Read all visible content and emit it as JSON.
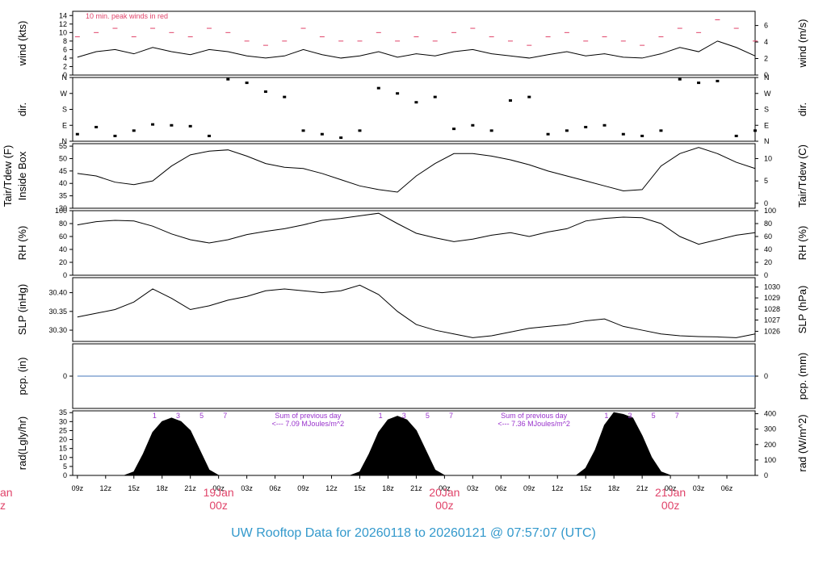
{
  "page": {
    "title": "UW Rooftop Data for 20260118  to  20260121 @ 07:57:07  (UTC)",
    "title_color": "#3399cc",
    "date_color": "#e0446a",
    "annotation_color": "#9933cc",
    "peak_color": "#e0446a"
  },
  "chart_data": [
    {
      "id": "wind",
      "type": "line",
      "ylabel_left": "wind (kts)",
      "ylabel_right": "wind (m/s)",
      "ylim": [
        0,
        15
      ],
      "yticks_left": [
        "0",
        "2",
        "4",
        "6",
        "8",
        "10",
        "12",
        "14"
      ],
      "yticks_left_values": [
        0,
        2,
        4,
        6,
        8,
        10,
        12,
        14
      ],
      "yticks_right": [
        "0",
        "2",
        "4",
        "6"
      ],
      "yticks_right_values": [
        0,
        3.89,
        7.78,
        11.66
      ],
      "note": "10 min. peak winds in red",
      "series": [
        {
          "name": "wind",
          "x_hours": [
            0,
            2,
            4,
            6,
            8,
            10,
            12,
            14,
            16,
            18,
            20,
            22,
            24,
            26,
            28,
            30,
            32,
            34,
            36,
            38,
            40,
            42,
            44,
            46,
            48,
            50,
            52,
            54,
            56,
            58,
            60,
            62,
            64,
            66,
            68,
            70,
            72
          ],
          "values": [
            4.2,
            5.5,
            6.0,
            5.0,
            6.5,
            5.5,
            4.8,
            6.0,
            5.5,
            4.5,
            4.0,
            4.5,
            6.0,
            4.8,
            4.0,
            4.5,
            5.5,
            4.2,
            5.0,
            4.5,
            5.5,
            6.0,
            5.0,
            4.5,
            4.0,
            4.8,
            5.5,
            4.5,
            5.0,
            4.2,
            4.0,
            5.0,
            6.5,
            5.5,
            8.0,
            6.5,
            4.5
          ]
        },
        {
          "name": "peak",
          "x_hours": [
            0,
            2,
            4,
            6,
            8,
            10,
            12,
            14,
            16,
            18,
            20,
            22,
            24,
            26,
            28,
            30,
            32,
            34,
            36,
            38,
            40,
            42,
            44,
            46,
            48,
            50,
            52,
            54,
            56,
            58,
            60,
            62,
            64,
            66,
            68,
            70,
            72
          ],
          "values": [
            9,
            10,
            11,
            9,
            11,
            10,
            9,
            11,
            10,
            8,
            7,
            8,
            11,
            9,
            8,
            8,
            10,
            8,
            9,
            8,
            10,
            11,
            9,
            8,
            7,
            9,
            10,
            8,
            9,
            8,
            7,
            9,
            11,
            10,
            13,
            11,
            8
          ]
        }
      ]
    },
    {
      "id": "dir",
      "type": "scatter",
      "ylabel_left": "dir.",
      "ylabel_right": "dir.",
      "ylim": [
        0,
        360
      ],
      "yticks_left": [
        "N",
        "E",
        "S",
        "W",
        "N"
      ],
      "yticks_left_values": [
        0,
        90,
        180,
        270,
        360
      ],
      "yticks_right": [
        "N",
        "E",
        "S",
        "W",
        "N"
      ],
      "yticks_right_values": [
        0,
        90,
        180,
        270,
        360
      ],
      "series": [
        {
          "name": "direction",
          "x_hours": [
            0,
            2,
            4,
            6,
            8,
            10,
            12,
            14,
            16,
            18,
            20,
            22,
            24,
            26,
            28,
            30,
            32,
            34,
            36,
            38,
            40,
            42,
            44,
            46,
            48,
            50,
            52,
            54,
            56,
            58,
            60,
            62,
            64,
            66,
            68,
            70,
            72
          ],
          "values": [
            40,
            80,
            30,
            60,
            95,
            90,
            85,
            30,
            350,
            330,
            280,
            250,
            60,
            40,
            20,
            60,
            300,
            270,
            220,
            250,
            70,
            90,
            60,
            230,
            250,
            40,
            60,
            80,
            90,
            40,
            30,
            60,
            350,
            330,
            340,
            30,
            60
          ]
        }
      ]
    },
    {
      "id": "temp",
      "type": "line",
      "ylabel_left": "Tair/Tdew (F)",
      "ylabel_left2": "Inside Box",
      "ylabel_right": "Tair/Tdew (C)",
      "ylim": [
        30,
        56
      ],
      "yticks_left": [
        "30",
        "35",
        "40",
        "45",
        "50",
        "55"
      ],
      "yticks_left_values": [
        30,
        35,
        40,
        45,
        50,
        55
      ],
      "yticks_right": [
        "0",
        "5",
        "10"
      ],
      "yticks_right_values": [
        32,
        41,
        50
      ],
      "series": [
        {
          "name": "Tair",
          "x_hours": [
            0,
            2,
            4,
            6,
            8,
            10,
            12,
            14,
            16,
            18,
            20,
            22,
            24,
            26,
            28,
            30,
            32,
            34,
            36,
            38,
            40,
            42,
            44,
            46,
            48,
            50,
            52,
            54,
            56,
            58,
            60,
            62,
            64,
            66,
            68,
            70,
            72
          ],
          "values": [
            44,
            43,
            40.5,
            39.5,
            41,
            47,
            51.5,
            53,
            53.5,
            51,
            48,
            46.5,
            46,
            44,
            41.5,
            39,
            37.5,
            36.5,
            43,
            48,
            52,
            52,
            51,
            49.5,
            47.5,
            45,
            43,
            41,
            39,
            37,
            37.5,
            47,
            52,
            54.5,
            52,
            48.5,
            46
          ]
        }
      ]
    },
    {
      "id": "rh",
      "type": "line",
      "ylabel_left": "RH (%)",
      "ylabel_right": "RH (%)",
      "ylim": [
        0,
        100
      ],
      "yticks_left": [
        "0",
        "20",
        "40",
        "60",
        "80",
        "100"
      ],
      "yticks_left_values": [
        0,
        20,
        40,
        60,
        80,
        100
      ],
      "yticks_right": [
        "0",
        "20",
        "40",
        "60",
        "80",
        "100"
      ],
      "yticks_right_values": [
        0,
        20,
        40,
        60,
        80,
        100
      ],
      "series": [
        {
          "name": "RH",
          "x_hours": [
            0,
            2,
            4,
            6,
            8,
            10,
            12,
            14,
            16,
            18,
            20,
            22,
            24,
            26,
            28,
            30,
            32,
            34,
            36,
            38,
            40,
            42,
            44,
            46,
            48,
            50,
            52,
            54,
            56,
            58,
            60,
            62,
            64,
            66,
            68,
            70,
            72
          ],
          "values": [
            78,
            83,
            85,
            84,
            76,
            64,
            55,
            50,
            55,
            63,
            68,
            72,
            78,
            85,
            88,
            92,
            96,
            80,
            65,
            58,
            52,
            56,
            62,
            66,
            60,
            67,
            72,
            84,
            88,
            90,
            89,
            80,
            60,
            48,
            55,
            62,
            66
          ]
        }
      ]
    },
    {
      "id": "slp",
      "type": "line",
      "ylabel_left": "SLP (inHg)",
      "ylabel_right": "SLP (hPa)",
      "ylim": [
        30.27,
        30.44
      ],
      "yticks_left": [
        "30.30",
        "30.35",
        "30.40"
      ],
      "yticks_left_values": [
        30.3,
        30.35,
        30.4
      ],
      "yticks_right": [
        "1026",
        "1027",
        "1028",
        "1029",
        "1030"
      ],
      "yticks_right_values": [
        30.297,
        30.327,
        30.356,
        30.386,
        30.415
      ],
      "series": [
        {
          "name": "SLP",
          "x_hours": [
            0,
            2,
            4,
            6,
            8,
            10,
            12,
            14,
            16,
            18,
            20,
            22,
            24,
            26,
            28,
            30,
            32,
            34,
            36,
            38,
            40,
            42,
            44,
            46,
            48,
            50,
            52,
            54,
            56,
            58,
            60,
            62,
            64,
            66,
            68,
            70,
            72
          ],
          "values": [
            30.335,
            30.345,
            30.355,
            30.375,
            30.41,
            30.385,
            30.355,
            30.365,
            30.38,
            30.39,
            30.405,
            30.41,
            30.405,
            30.4,
            30.405,
            30.42,
            30.395,
            30.35,
            30.315,
            30.3,
            30.29,
            30.28,
            30.285,
            30.295,
            30.305,
            30.31,
            30.315,
            30.325,
            30.33,
            30.31,
            30.3,
            30.29,
            30.285,
            30.283,
            30.282,
            30.28,
            30.29
          ]
        }
      ]
    },
    {
      "id": "pcp",
      "type": "line",
      "ylabel_left": "pcp. (in)",
      "ylabel_right": "pcp. (mm)",
      "ylim": [
        -0.05,
        0.05
      ],
      "yticks_left": [
        "0"
      ],
      "yticks_left_values": [
        0
      ],
      "yticks_right": [
        "0"
      ],
      "yticks_right_values": [
        0
      ],
      "series": [
        {
          "name": "precip",
          "x_hours": [
            0,
            72
          ],
          "values": [
            0,
            0
          ]
        }
      ]
    },
    {
      "id": "rad",
      "type": "area",
      "ylabel_left": "rad(Lgly/hr)",
      "ylabel_right": "rad (W/m^2)",
      "ylim": [
        0,
        36
      ],
      "yticks_left": [
        "0",
        "5",
        "10",
        "15",
        "20",
        "25",
        "30",
        "35"
      ],
      "yticks_left_values": [
        0,
        5,
        10,
        15,
        20,
        25,
        30,
        35
      ],
      "yticks_right": [
        "0",
        "100",
        "200",
        "300",
        "400"
      ],
      "yticks_right_values": [
        0,
        8.6,
        17.2,
        25.8,
        34.4
      ],
      "hour_marks": [
        "1",
        "3",
        "5",
        "7"
      ],
      "annotations": [
        {
          "line1": "Sum of previous day",
          "line2": "<--- 7.09 MJoules/m^2"
        },
        {
          "line1": "Sum of previous day",
          "line2": "<--- 7.36 MJoules/m^2"
        }
      ],
      "series": [
        {
          "name": "radiation",
          "x_hours": [
            5,
            6,
            7,
            8,
            9,
            10,
            11,
            12,
            13,
            14,
            15,
            29,
            30,
            31,
            32,
            33,
            34,
            35,
            36,
            37,
            38,
            39,
            53,
            54,
            55,
            56,
            57,
            58,
            59,
            60,
            61,
            62,
            63
          ],
          "values": [
            0,
            2,
            12,
            24,
            30,
            32,
            30,
            25,
            14,
            3,
            0,
            0,
            2,
            12,
            24,
            31,
            33,
            31,
            25,
            14,
            3,
            0,
            0,
            4,
            14,
            28,
            35,
            34,
            32,
            22,
            10,
            2,
            0
          ]
        }
      ]
    }
  ],
  "xaxis": {
    "ticks": [
      "09z",
      "12z",
      "15z",
      "18z",
      "21z",
      "00z",
      "03z",
      "06z",
      "09z",
      "12z",
      "15z",
      "18z",
      "21z",
      "00z",
      "03z",
      "06z",
      "09z",
      "12z",
      "15z",
      "18z",
      "21z",
      "00z",
      "03z",
      "06z"
    ],
    "tick_hours": [
      0,
      3,
      6,
      9,
      12,
      15,
      18,
      21,
      24,
      27,
      30,
      33,
      36,
      39,
      42,
      45,
      48,
      51,
      54,
      57,
      60,
      63,
      66,
      69
    ],
    "dates": [
      {
        "day": "19Jan",
        "time": "00z"
      },
      {
        "day": "20Jan",
        "time": "00z"
      },
      {
        "day": "21Jan",
        "time": "00z"
      }
    ],
    "dates_hours": [
      15,
      39,
      63
    ],
    "clipped": {
      "day": "an",
      "time": "z"
    },
    "range_hours": [
      -0.5,
      72
    ]
  }
}
